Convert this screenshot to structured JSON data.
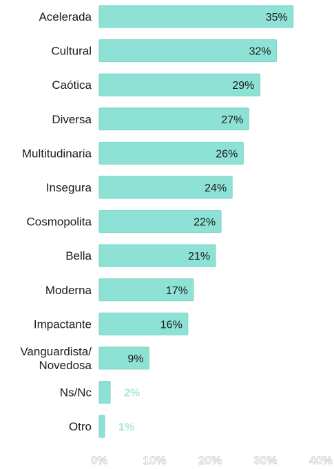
{
  "chart_data": {
    "type": "bar",
    "orientation": "horizontal",
    "categories": [
      [
        "Acelerada"
      ],
      [
        "Cultural"
      ],
      [
        "Caótica"
      ],
      [
        "Diversa"
      ],
      [
        "Multitudinaria"
      ],
      [
        "Insegura"
      ],
      [
        "Cosmopolita"
      ],
      [
        "Bella"
      ],
      [
        "Moderna"
      ],
      [
        "Impactante"
      ],
      [
        "Vanguardista/",
        "Novedosa"
      ],
      [
        "Ns/Nc"
      ],
      [
        "Otro"
      ]
    ],
    "values": [
      35,
      32,
      29,
      27,
      26,
      24,
      22,
      21,
      17,
      16,
      9,
      2,
      1
    ],
    "value_labels": [
      "35%",
      "32%",
      "29%",
      "27%",
      "26%",
      "24%",
      "22%",
      "21%",
      "17%",
      "16%",
      "9%",
      "2%",
      "1%"
    ],
    "xlim": [
      0,
      40
    ],
    "x_ticks": [
      "0%",
      "10%",
      "20%",
      "30%",
      "40%"
    ],
    "grid": false,
    "legend": "none",
    "colors": {
      "bar": "#8ee1d5",
      "bar_edge": "#7fd3c7",
      "outside_label": "#a8e6dc"
    }
  }
}
